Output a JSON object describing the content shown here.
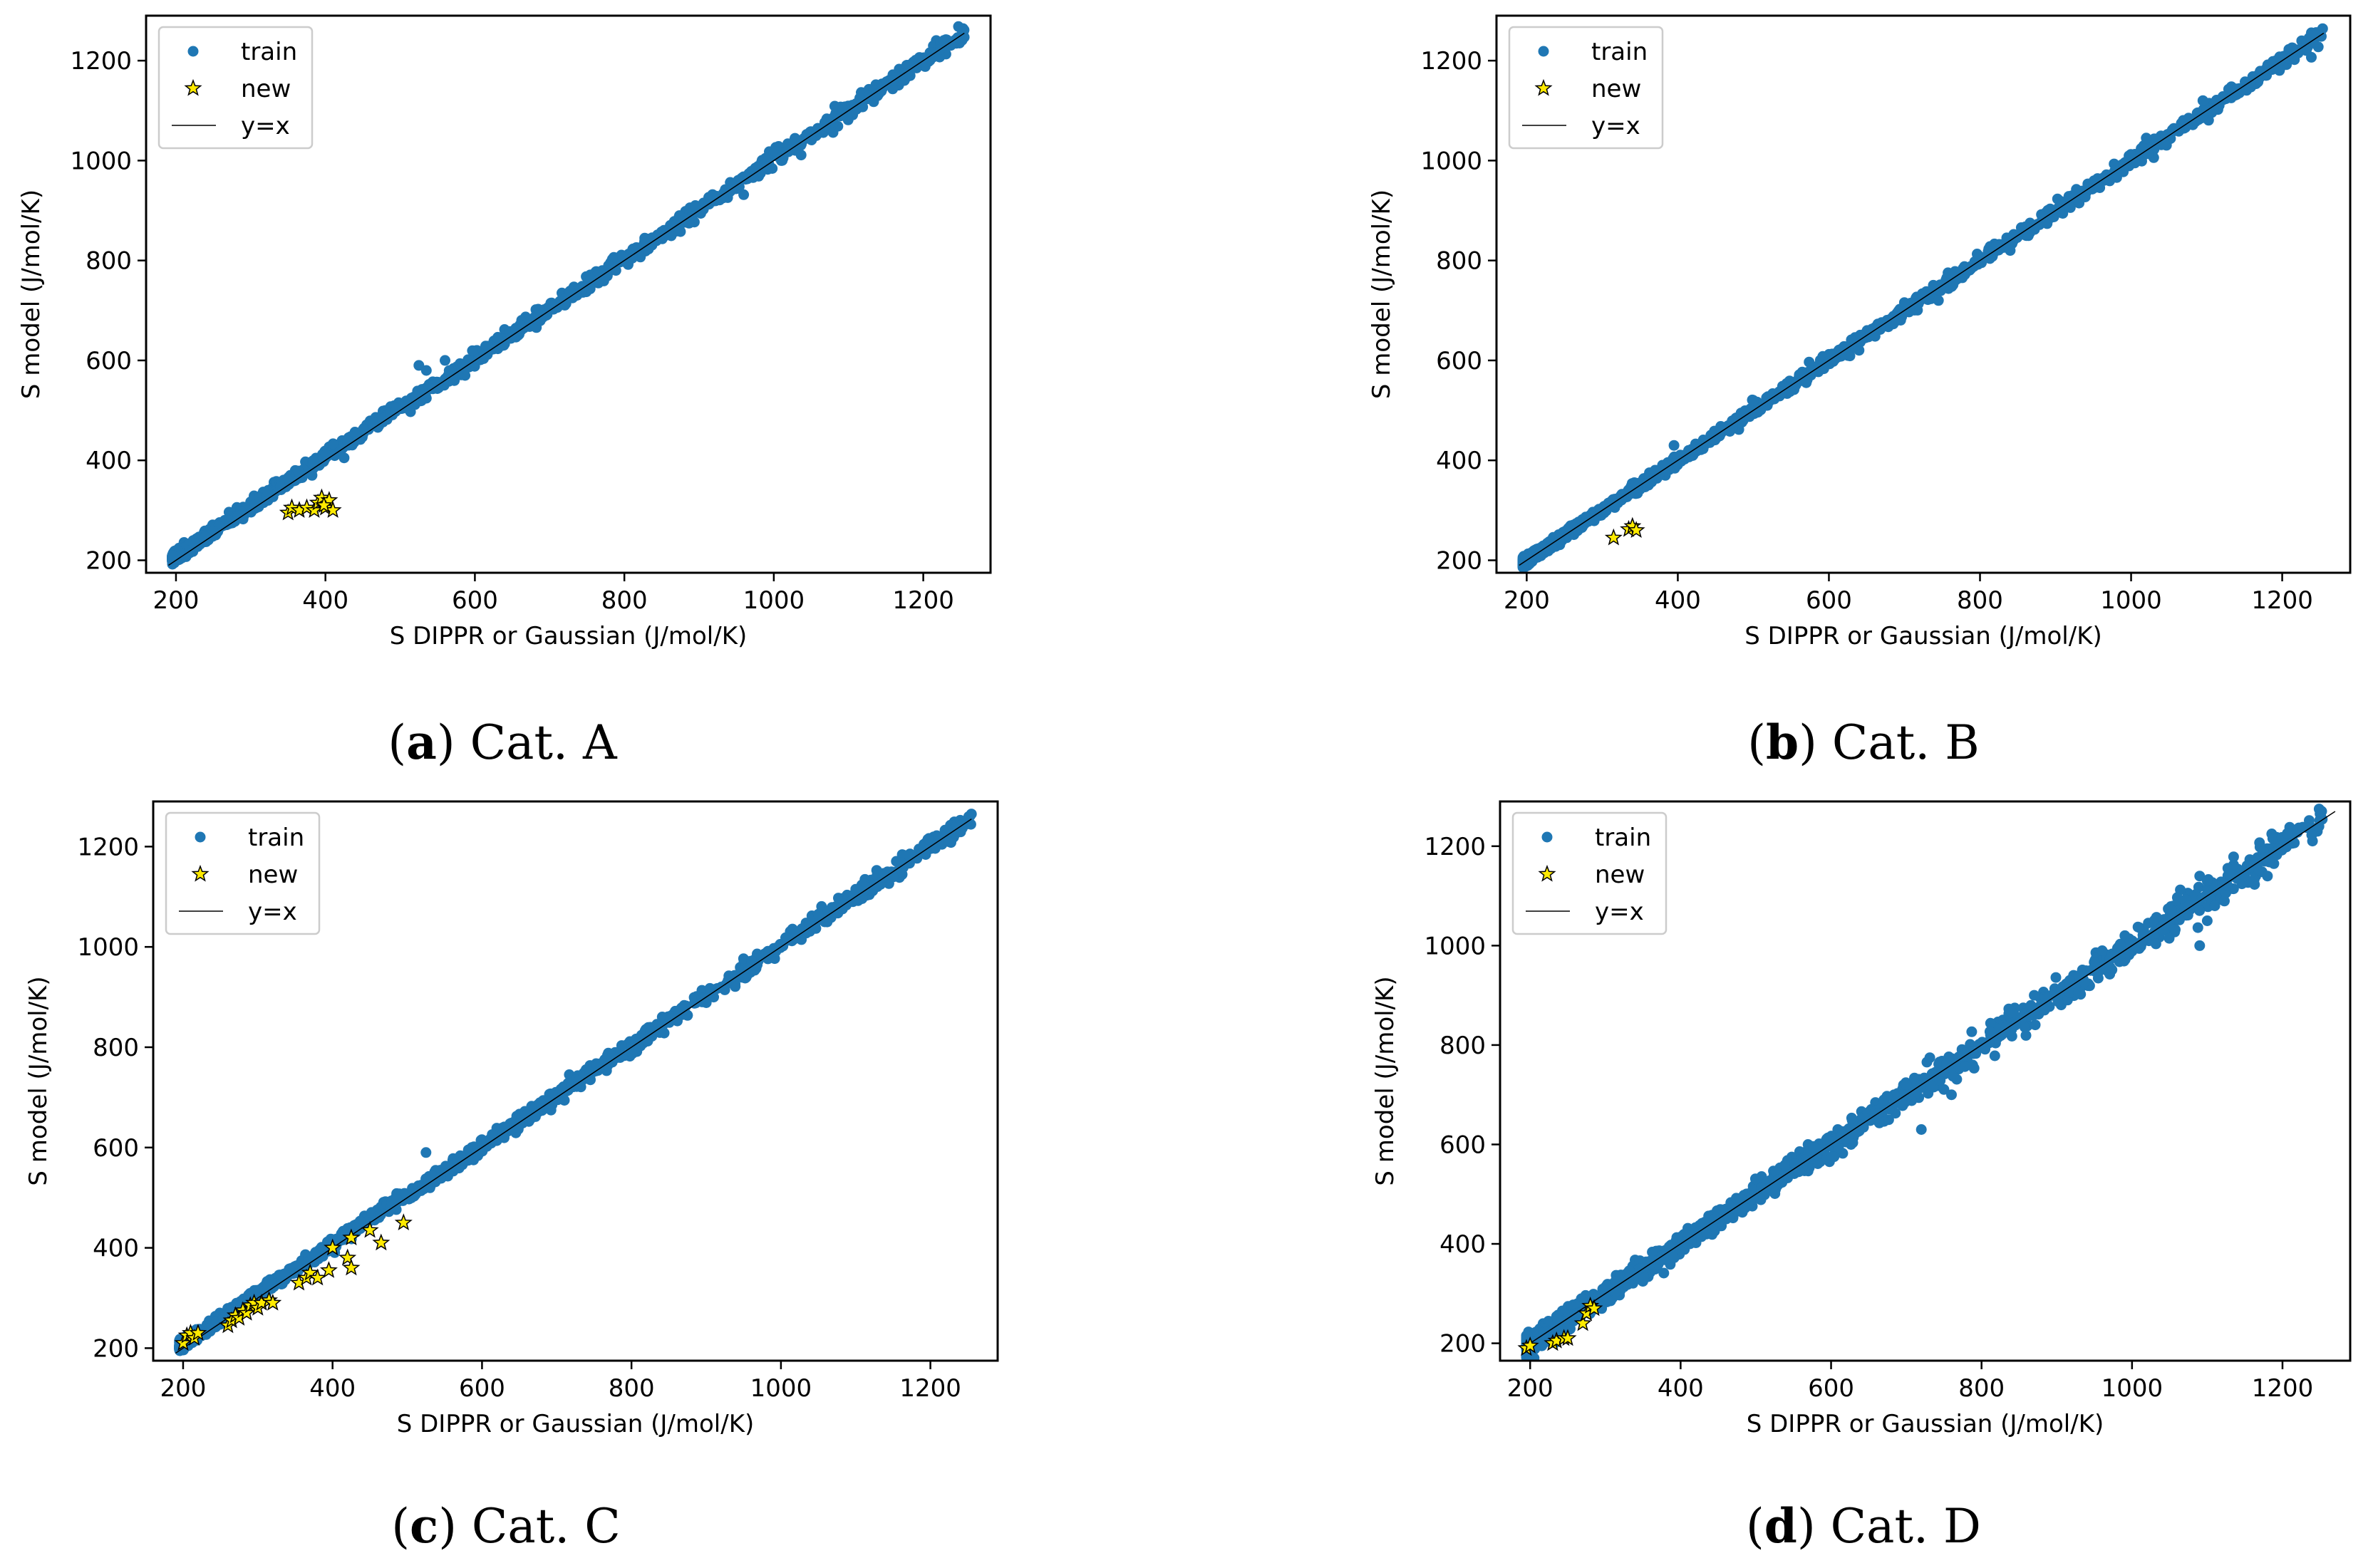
{
  "colors": {
    "train": "#1f77b4",
    "new": "#ffea00",
    "line": "#000000"
  },
  "chart_data": [
    {
      "type": "scatter",
      "caption_letter": "a",
      "caption_open": "(",
      "caption_close": ")",
      "caption_text": " Cat. A",
      "xlabel": "S DIPPR or Gaussian (J/mol/K)",
      "ylabel": "S model (J/mol/K)",
      "xlim": [
        160,
        1290
      ],
      "ylim": [
        175,
        1290
      ],
      "xticks": [
        200,
        400,
        600,
        800,
        1000,
        1200
      ],
      "yticks": [
        200,
        400,
        600,
        800,
        1000,
        1200
      ],
      "legend": [
        "train",
        "new",
        "y=x"
      ],
      "legend_position": "top-left",
      "line": {
        "name": "y=x",
        "from": 190,
        "to": 1255
      },
      "train_outliers": [
        [
          425,
          405
        ],
        [
          525,
          590
        ],
        [
          535,
          580
        ],
        [
          560,
          600
        ],
        [
          655,
          660
        ],
        [
          745,
          745
        ],
        [
          895,
          910
        ],
        [
          1010,
          1000
        ],
        [
          1090,
          1090
        ],
        [
          1115,
          1125
        ]
      ],
      "train_noise": 10,
      "new": [
        [
          350,
          295
        ],
        [
          355,
          305
        ],
        [
          365,
          300
        ],
        [
          375,
          305
        ],
        [
          385,
          300
        ],
        [
          390,
          315
        ],
        [
          395,
          325
        ],
        [
          400,
          305
        ],
        [
          405,
          320
        ],
        [
          410,
          300
        ],
        [
          398,
          310
        ]
      ]
    },
    {
      "type": "scatter",
      "caption_letter": "b",
      "caption_open": "(",
      "caption_close": ")",
      "caption_text": " Cat. B",
      "xlabel": "S DIPPR or Gaussian (J/mol/K)",
      "ylabel": "S model (J/mol/K)",
      "xlim": [
        160,
        1290
      ],
      "ylim": [
        175,
        1290
      ],
      "xticks": [
        200,
        400,
        600,
        800,
        1000,
        1200
      ],
      "yticks": [
        200,
        400,
        600,
        800,
        1000,
        1200
      ],
      "legend": [
        "train",
        "new",
        "y=x"
      ],
      "legend_position": "top-left",
      "line": {
        "name": "y=x",
        "from": 190,
        "to": 1255
      },
      "train_outliers": [
        [
          395,
          430
        ],
        [
          500,
          520
        ],
        [
          690,
          680
        ],
        [
          745,
          720
        ],
        [
          840,
          820
        ],
        [
          1095,
          1120
        ],
        [
          1100,
          1100
        ],
        [
          1020,
          1045
        ]
      ],
      "train_noise": 9,
      "new": [
        [
          315,
          245
        ],
        [
          335,
          262
        ],
        [
          340,
          268
        ],
        [
          345,
          260
        ]
      ]
    },
    {
      "type": "scatter",
      "caption_letter": "c",
      "caption_open": "(",
      "caption_close": ")",
      "caption_text": " Cat. C",
      "xlabel": "S DIPPR or Gaussian (J/mol/K)",
      "ylabel": "S model (J/mol/K)",
      "xlim": [
        160,
        1290
      ],
      "ylim": [
        175,
        1290
      ],
      "xticks": [
        200,
        400,
        600,
        800,
        1000,
        1200
      ],
      "yticks": [
        200,
        400,
        600,
        800,
        1000,
        1200
      ],
      "legend": [
        "train",
        "new",
        "y=x"
      ],
      "legend_position": "top-left",
      "line": {
        "name": "y=x",
        "from": 190,
        "to": 1255
      },
      "train_outliers": [
        [
          525,
          590
        ],
        [
          660,
          665
        ],
        [
          745,
          735
        ],
        [
          910,
          900
        ],
        [
          1050,
          1065
        ],
        [
          1100,
          1115
        ]
      ],
      "train_noise": 10,
      "new": [
        [
          200,
          210
        ],
        [
          205,
          225
        ],
        [
          210,
          230
        ],
        [
          215,
          220
        ],
        [
          220,
          230
        ],
        [
          260,
          245
        ],
        [
          265,
          255
        ],
        [
          270,
          265
        ],
        [
          275,
          260
        ],
        [
          280,
          275
        ],
        [
          285,
          270
        ],
        [
          290,
          285
        ],
        [
          295,
          290
        ],
        [
          300,
          280
        ],
        [
          305,
          290
        ],
        [
          315,
          295
        ],
        [
          320,
          290
        ],
        [
          355,
          330
        ],
        [
          365,
          340
        ],
        [
          370,
          350
        ],
        [
          380,
          340
        ],
        [
          395,
          355
        ],
        [
          400,
          400
        ],
        [
          420,
          380
        ],
        [
          425,
          360
        ],
        [
          425,
          420
        ],
        [
          450,
          435
        ],
        [
          465,
          410
        ],
        [
          495,
          450
        ]
      ]
    },
    {
      "type": "scatter",
      "caption_letter": "d",
      "caption_open": "(",
      "caption_close": ")",
      "caption_text": " Cat. D",
      "xlabel": "S DIPPR or Gaussian (J/mol/K)",
      "ylabel": "S model (J/mol/K)",
      "xlim": [
        160,
        1290
      ],
      "ylim": [
        165,
        1290
      ],
      "xticks": [
        200,
        400,
        600,
        800,
        1000,
        1200
      ],
      "yticks": [
        200,
        400,
        600,
        800,
        1000,
        1200
      ],
      "legend": [
        "train",
        "new",
        "y=x"
      ],
      "legend_position": "top-left",
      "line": {
        "name": "y=x",
        "from": 190,
        "to": 1270
      },
      "train_outliers": [
        [
          720,
          630
        ],
        [
          700,
          720
        ],
        [
          760,
          700
        ],
        [
          1090,
          1140
        ],
        [
          1100,
          1130
        ],
        [
          1150,
          1140
        ],
        [
          1100,
          1050
        ],
        [
          1110,
          1080
        ],
        [
          1090,
          1000
        ],
        [
          1180,
          1140
        ],
        [
          1250,
          1270
        ],
        [
          845,
          840
        ],
        [
          870,
          900
        ],
        [
          930,
          940
        ]
      ],
      "train_noise": 22,
      "new": [
        [
          195,
          190
        ],
        [
          200,
          195
        ],
        [
          230,
          200
        ],
        [
          235,
          205
        ],
        [
          245,
          210
        ],
        [
          250,
          210
        ],
        [
          270,
          240
        ],
        [
          275,
          260
        ],
        [
          280,
          275
        ],
        [
          285,
          270
        ]
      ]
    }
  ]
}
